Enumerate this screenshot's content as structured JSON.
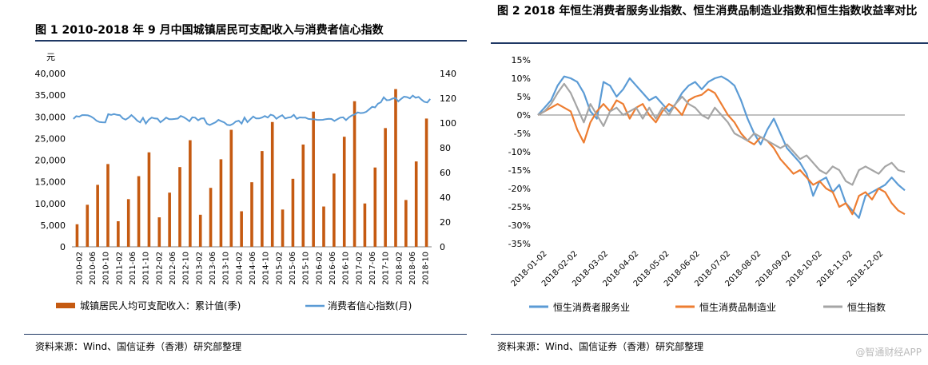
{
  "watermark": "@智通财经APP",
  "source_text": "资料来源：Wind、国信证券（香港）研究部整理",
  "chart_data": [
    {
      "type": "bar+line",
      "title": "图 1   2010-2018 年 9 月中国城镇居民可支配收入与消费者信心指数",
      "left_unit": "元",
      "ylim_left": [
        0,
        40000
      ],
      "ylim_right": [
        0,
        140
      ],
      "left_ticks": [
        "0",
        "5,000",
        "10,000",
        "15,000",
        "20,000",
        "25,000",
        "30,000",
        "35,000",
        "40,000"
      ],
      "right_ticks": [
        "0",
        "20",
        "40",
        "60",
        "80",
        "100",
        "120",
        "140"
      ],
      "categories": [
        "2010-02",
        "2010-06",
        "2010-10",
        "2011-02",
        "2011-06",
        "2011-10",
        "2012-02",
        "2012-06",
        "2012-10",
        "2013-02",
        "2013-06",
        "2013-10",
        "2014-02",
        "2014-06",
        "2014-10",
        "2015-02",
        "2015-06",
        "2015-10",
        "2016-02",
        "2016-06",
        "2016-10",
        "2017-02",
        "2017-06",
        "2017-10",
        "2018-02",
        "2018-06",
        "2018-10"
      ],
      "bar_series": {
        "name": "城镇居民人均可支配收入：累计值(季)",
        "color": "#C55A11",
        "values": [
          5200,
          9700,
          14300,
          19100,
          5900,
          11000,
          16300,
          21800,
          6800,
          12500,
          18400,
          24600,
          7400,
          13600,
          20200,
          27000,
          8200,
          14900,
          22100,
          28800,
          8600,
          15700,
          23600,
          31200,
          9300,
          16900,
          25400,
          33600,
          10000,
          18300,
          27400,
          36400,
          10800,
          19700,
          29600
        ]
      },
      "line_series": {
        "name": "消费者信心指数(月)",
        "color": "#5B9BD5",
        "values": [
          103.3,
          105.5,
          105.1,
          106.4,
          106.4,
          106.2,
          105.3,
          103.9,
          101.8,
          100.8,
          100.6,
          100.5,
          107.1,
          106.5,
          107.2,
          106.6,
          106.3,
          103.8,
          102.7,
          104.2,
          106.4,
          104.4,
          101.9,
          100.5,
          104.1,
          99.6,
          102.7,
          104.4,
          103.7,
          103.5,
          100.6,
          102.3,
          104.4,
          103.1,
          103.1,
          103.3,
          103.6,
          105.7,
          104.7,
          103.3,
          101.4,
          104.6,
          104.3,
          102.2,
          103.6,
          103.8,
          99.4,
          98.4,
          99.5,
          100.5,
          102.5,
          101.4,
          100.5,
          98.5,
          98.2,
          99.2,
          101.2,
          101.9,
          99.5,
          104.4,
          100.7,
          103.0,
          105.2,
          103.7,
          103.7,
          104.4,
          105.6,
          104.4,
          106.7,
          106.0,
          103.4,
          105.1,
          106.3,
          103.6,
          104.4,
          104.7,
          106.6,
          103.4,
          104.5,
          104.4,
          104.4,
          103.3,
          103.0,
          103.0,
          102.5,
          102.5,
          102.6,
          103.1,
          103.4,
          103.2,
          101.7,
          103.0,
          104.3,
          104.6,
          102.3,
          104.6,
          106.1,
          106.9,
          108.6,
          108.0,
          108.2,
          109.1,
          111.1,
          113.1,
          112.6,
          115.6,
          116.8,
          120.7,
          118.4,
          118.6,
          119.7,
          120.3,
          117.5,
          119.5,
          121.3,
          120.9,
          119.9,
          122.1,
          120.4,
          121.0,
          118.9,
          117.1,
          116.6,
          119.4
        ]
      },
      "legend": [
        "城镇居民人均可支配收入：累计值(季)",
        "消费者信心指数(月)"
      ]
    },
    {
      "type": "line",
      "title": "图 2   2018 年恒生消费者服务业指数、恒生消费品制造业指数和恒生指数收益率对比",
      "ylim": [
        -0.35,
        0.15
      ],
      "y_ticks": [
        "15%",
        "10%",
        "5%",
        "0%",
        "-5%",
        "-10%",
        "-15%",
        "-20%",
        "-25%",
        "-30%",
        "-35%"
      ],
      "x_ticks": [
        "2018-01-02",
        "2018-02-02",
        "2018-03-02",
        "2018-04-02",
        "2018-05-02",
        "2018-06-02",
        "2018-07-02",
        "2018-08-02",
        "2018-09-02",
        "2018-10-02",
        "2018-11-02",
        "2018-12-02"
      ],
      "series": [
        {
          "name": "恒生消费者服务业",
          "color": "#5B9BD5",
          "values": [
            0.0,
            0.02,
            0.04,
            0.08,
            0.105,
            0.1,
            0.09,
            0.06,
            0.01,
            -0.01,
            0.09,
            0.08,
            0.05,
            0.07,
            0.1,
            0.08,
            0.06,
            0.04,
            0.05,
            0.03,
            0.01,
            0.03,
            0.06,
            0.08,
            0.09,
            0.07,
            0.09,
            0.1,
            0.105,
            0.095,
            0.08,
            0.04,
            -0.01,
            -0.05,
            -0.08,
            -0.04,
            -0.01,
            -0.05,
            -0.09,
            -0.11,
            -0.13,
            -0.16,
            -0.22,
            -0.18,
            -0.17,
            -0.21,
            -0.19,
            -0.24,
            -0.26,
            -0.28,
            -0.22,
            -0.21,
            -0.2,
            -0.19,
            -0.17,
            -0.19,
            -0.205
          ]
        },
        {
          "name": "恒生消费品制造业",
          "color": "#ED7D31",
          "values": [
            0.0,
            0.01,
            0.02,
            0.03,
            0.02,
            0.01,
            -0.04,
            -0.075,
            -0.02,
            0.01,
            0.03,
            0.01,
            0.04,
            0.03,
            -0.01,
            0.02,
            0.03,
            0.0,
            -0.02,
            0.01,
            0.03,
            0.02,
            0.0,
            0.04,
            0.05,
            0.055,
            0.07,
            0.06,
            0.03,
            0.0,
            -0.02,
            -0.05,
            -0.07,
            -0.08,
            -0.06,
            -0.07,
            -0.09,
            -0.12,
            -0.14,
            -0.16,
            -0.15,
            -0.17,
            -0.19,
            -0.18,
            -0.2,
            -0.21,
            -0.25,
            -0.24,
            -0.27,
            -0.22,
            -0.21,
            -0.23,
            -0.2,
            -0.21,
            -0.24,
            -0.26,
            -0.27
          ]
        },
        {
          "name": "恒生指数",
          "color": "#A5A5A5",
          "values": [
            0.0,
            0.01,
            0.03,
            0.06,
            0.085,
            0.06,
            0.02,
            -0.02,
            0.03,
            0.0,
            -0.03,
            0.01,
            0.02,
            0.0,
            0.01,
            0.02,
            -0.01,
            0.02,
            -0.01,
            0.02,
            0.0,
            0.03,
            0.05,
            0.03,
            0.02,
            0.0,
            -0.01,
            0.02,
            0.0,
            -0.02,
            -0.05,
            -0.06,
            -0.07,
            -0.05,
            -0.06,
            -0.07,
            -0.08,
            -0.09,
            -0.08,
            -0.1,
            -0.12,
            -0.11,
            -0.13,
            -0.15,
            -0.16,
            -0.14,
            -0.15,
            -0.18,
            -0.19,
            -0.15,
            -0.14,
            -0.15,
            -0.16,
            -0.14,
            -0.13,
            -0.15,
            -0.155
          ]
        }
      ],
      "legend": [
        "恒生消费者服务业",
        "恒生消费品制造业",
        "恒生指数"
      ]
    }
  ]
}
